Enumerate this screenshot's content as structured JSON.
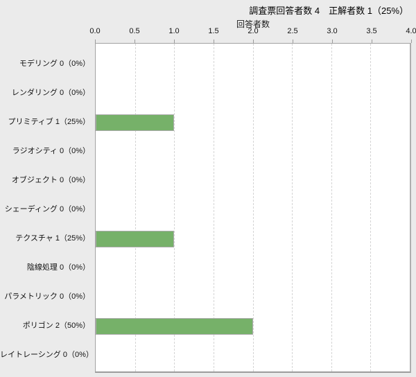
{
  "header": {
    "title": "調査票回答者数 4　正解者数 1（25%）",
    "respondents_label": "調査票回答者数",
    "respondents_count": 4,
    "correct_label": "正解者数",
    "correct_count": 1,
    "correct_percent": "25%"
  },
  "colors": {
    "page_background": "#ebebeb",
    "plot_background": "#ffffff",
    "plot_border": "#a2a2a2",
    "gridline": "#d4d4d4",
    "bar_fill": "#76b169",
    "bar_border": "#ababab",
    "text": "#111111"
  },
  "chart_data": {
    "type": "bar",
    "orientation": "horizontal",
    "title": "調査票回答者数 4　正解者数 1（25%）",
    "xlabel": "回答者数",
    "ylabel": "",
    "xlim": [
      0,
      4
    ],
    "xtick_labels": [
      "0.0",
      "0.5",
      "1.0",
      "1.5",
      "2.0",
      "2.5",
      "3.0",
      "3.5",
      "4.0"
    ],
    "grid": "vertical-dashed",
    "legend": "none",
    "categories": [
      {
        "name": "モデリング",
        "count": 0,
        "percent": "0%",
        "display": "モデリング 0（0%）",
        "value": 0
      },
      {
        "name": "レンダリング",
        "count": 0,
        "percent": "0%",
        "display": "レンダリング 0（0%）",
        "value": 0
      },
      {
        "name": "プリミティブ",
        "count": 1,
        "percent": "25%",
        "display": "プリミティブ 1（25%）",
        "value": 1
      },
      {
        "name": "ラジオシティ",
        "count": 0,
        "percent": "0%",
        "display": "ラジオシティ 0（0%）",
        "value": 0
      },
      {
        "name": "オブジェクト",
        "count": 0,
        "percent": "0%",
        "display": "オブジェクト 0（0%）",
        "value": 0
      },
      {
        "name": "シェーディング",
        "count": 0,
        "percent": "0%",
        "display": "シェーディング 0（0%）",
        "value": 0
      },
      {
        "name": "テクスチャ",
        "count": 1,
        "percent": "25%",
        "display": "テクスチャ 1（25%）",
        "value": 1
      },
      {
        "name": "陰線処理",
        "count": 0,
        "percent": "0%",
        "display": "陰線処理 0（0%）",
        "value": 0
      },
      {
        "name": "パラメトリック",
        "count": 0,
        "percent": "0%",
        "display": "パラメトリック 0（0%）",
        "value": 0
      },
      {
        "name": "ポリゴン",
        "count": 2,
        "percent": "50%",
        "display": "ポリゴン 2（50%）",
        "value": 2
      },
      {
        "name": "レイトレーシング",
        "count": 0,
        "percent": "0%",
        "display": "レイトレーシング 0（0%）",
        "value": 0
      }
    ],
    "values": [
      0,
      0,
      1,
      0,
      0,
      0,
      1,
      0,
      0,
      2,
      0
    ]
  }
}
